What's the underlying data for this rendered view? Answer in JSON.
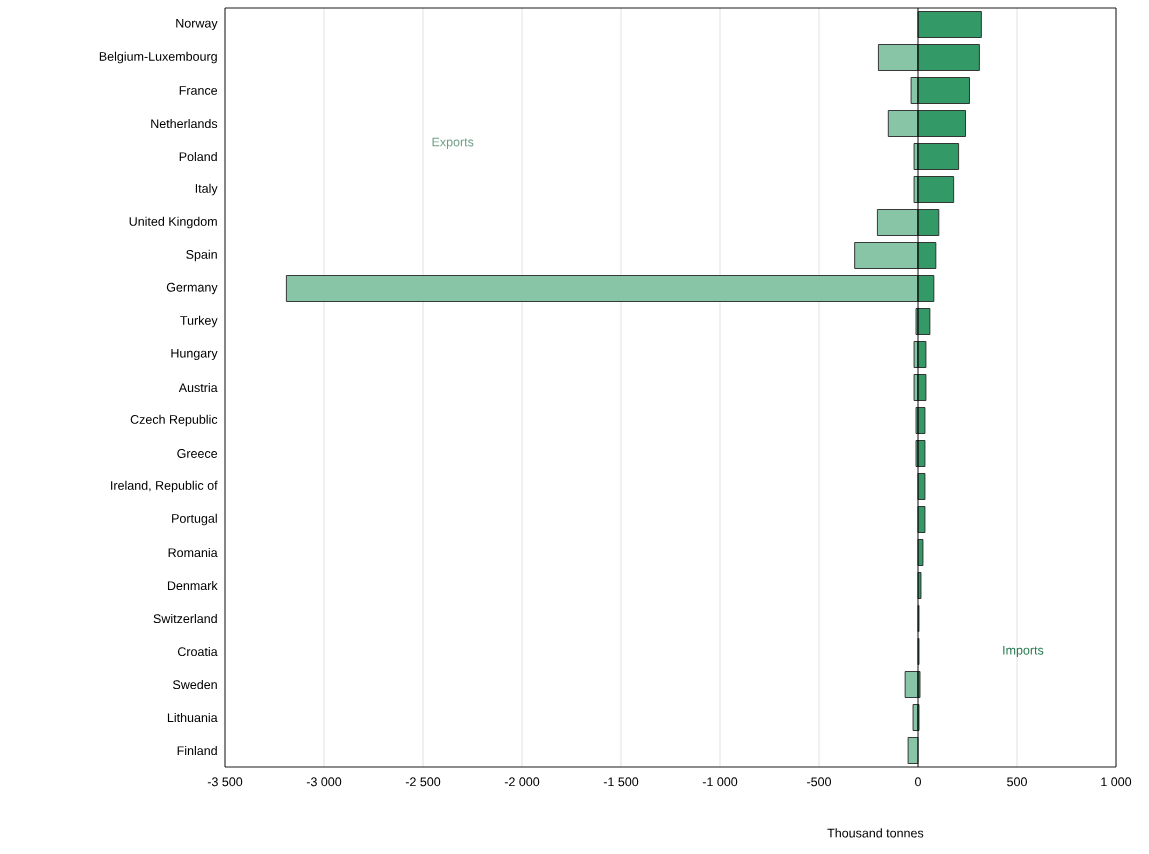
{
  "chart_data": {
    "type": "bar",
    "orientation": "horizontal",
    "xlabel": "Thousand tonnes",
    "categories": [
      "Norway",
      "Belgium-Luxembourg",
      "France",
      "Netherlands",
      "Poland",
      "Italy",
      "United Kingdom",
      "Spain",
      "Germany",
      "Turkey",
      "Hungary",
      "Austria",
      "Czech Republic",
      "Greece",
      "Ireland, Republic of",
      "Portugal",
      "Romania",
      "Denmark",
      "Switzerland",
      "Croatia",
      "Sweden",
      "Lithuania",
      "Finland"
    ],
    "series": [
      {
        "name": "Exports",
        "color": "#88c4a6",
        "values": [
          null,
          -200,
          -35,
          -150,
          -20,
          -20,
          -205,
          -320,
          -3190,
          -10,
          -20,
          -20,
          -10,
          -10,
          null,
          null,
          null,
          null,
          null,
          null,
          -65,
          -25,
          -50
        ]
      },
      {
        "name": "Imports",
        "color": "#339966",
        "values": [
          320,
          310,
          260,
          240,
          205,
          180,
          105,
          90,
          80,
          60,
          40,
          40,
          35,
          35,
          35,
          35,
          25,
          15,
          5,
          5,
          10,
          5,
          null
        ]
      }
    ],
    "xlim": [
      -3500,
      1000
    ],
    "xticks": [
      {
        "value": -3500,
        "label": "-3 500"
      },
      {
        "value": -3000,
        "label": "-3 000"
      },
      {
        "value": -2500,
        "label": "-2 500"
      },
      {
        "value": -2000,
        "label": "-2 000"
      },
      {
        "value": -1500,
        "label": "-1 500"
      },
      {
        "value": -1000,
        "label": "-1 000"
      },
      -500,
      0,
      500,
      {
        "value": 1000,
        "label": "1 000"
      }
    ],
    "grid": "x",
    "legend": false
  }
}
